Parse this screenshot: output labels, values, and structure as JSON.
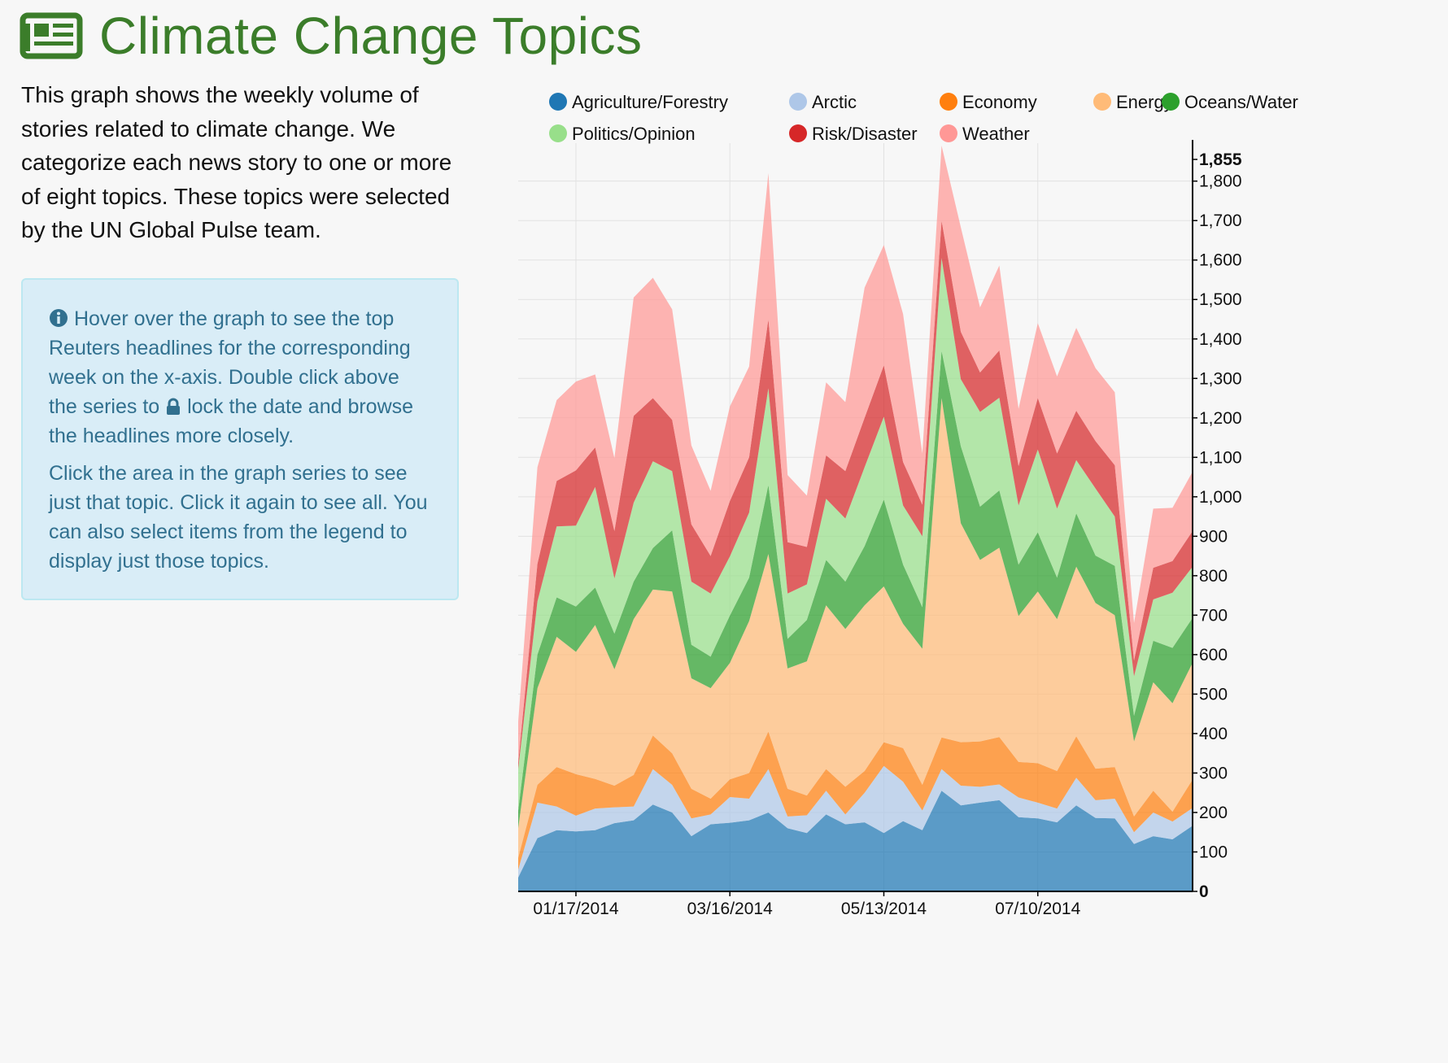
{
  "header": {
    "title": "Climate Change Topics",
    "icon": "newspaper-icon"
  },
  "intro": {
    "text": "This graph shows the weekly volume of stories related to climate change. We categorize each news story to one or more of eight topics. These topics were selected by the UN Global Pulse team."
  },
  "info": {
    "icon": "info-circle-icon",
    "p1_a": "Hover over the graph to see the top Reuters headlines for the corresponding week on the x-axis. Double click above the series to ",
    "lock_icon": "lock-icon",
    "p1_b": "lock the date and browse the headlines more closely.",
    "p2": "Click the area in the graph series to see just that topic. Click it again to see all. You can also select items from the legend to display just those topics."
  },
  "chart_data": {
    "type": "area",
    "stacked": true,
    "x": [
      "12/26/2013",
      "01/02/2014",
      "01/09/2014",
      "01/17/2014",
      "01/24/2014",
      "01/31/2014",
      "02/07/2014",
      "02/14/2014",
      "02/21/2014",
      "02/28/2014",
      "03/07/2014",
      "03/16/2014",
      "03/23/2014",
      "03/30/2014",
      "04/06/2014",
      "04/13/2014",
      "04/20/2014",
      "04/27/2014",
      "05/04/2014",
      "05/13/2014",
      "05/20/2014",
      "05/27/2014",
      "06/03/2014",
      "06/10/2014",
      "06/17/2014",
      "06/24/2014",
      "07/01/2014",
      "07/10/2014",
      "07/17/2014",
      "07/24/2014",
      "07/31/2014",
      "08/07/2014",
      "08/14/2014",
      "08/21/2014",
      "08/28/2014",
      "09/04/2014"
    ],
    "x_tick_labels": [
      "01/17/2014",
      "03/16/2014",
      "05/13/2014",
      "07/10/2014"
    ],
    "y_ticks": [
      0,
      100,
      200,
      300,
      400,
      500,
      600,
      700,
      800,
      900,
      1000,
      1100,
      1200,
      1300,
      1400,
      1500,
      1600,
      1700,
      1800,
      1855
    ],
    "ylim": [
      0,
      1855
    ],
    "grid": true,
    "legend_position": "top",
    "series": [
      {
        "name": "Agriculture/Forestry",
        "color": "#1f77b4",
        "values": [
          35,
          135,
          155,
          152,
          155,
          173,
          180,
          220,
          200,
          140,
          170,
          174,
          180,
          200,
          160,
          148,
          195,
          170,
          175,
          148,
          178,
          155,
          255,
          218,
          225,
          231,
          188,
          185,
          175,
          218,
          186,
          185,
          120,
          140,
          132,
          165
        ]
      },
      {
        "name": "Arctic",
        "color": "#aec7e8",
        "values": [
          20,
          90,
          60,
          40,
          55,
          40,
          35,
          90,
          70,
          45,
          25,
          65,
          55,
          110,
          30,
          45,
          60,
          25,
          75,
          170,
          100,
          50,
          55,
          50,
          40,
          40,
          50,
          40,
          35,
          70,
          45,
          50,
          30,
          60,
          45,
          45
        ]
      },
      {
        "name": "Economy",
        "color": "#ff7f0e",
        "values": [
          30,
          45,
          100,
          105,
          75,
          55,
          80,
          85,
          80,
          75,
          40,
          45,
          65,
          95,
          70,
          50,
          55,
          70,
          55,
          60,
          85,
          65,
          80,
          110,
          115,
          120,
          90,
          100,
          95,
          105,
          80,
          80,
          40,
          55,
          25,
          70
        ]
      },
      {
        "name": "Energy",
        "color": "#ffbb78",
        "values": [
          75,
          245,
          330,
          310,
          390,
          295,
          395,
          370,
          410,
          280,
          280,
          295,
          385,
          450,
          305,
          340,
          415,
          400,
          420,
          395,
          315,
          345,
          860,
          555,
          460,
          480,
          370,
          435,
          385,
          430,
          420,
          385,
          190,
          275,
          275,
          295
        ]
      },
      {
        "name": "Oceans/Water",
        "color": "#2ca02c",
        "values": [
          45,
          85,
          100,
          115,
          95,
          90,
          95,
          105,
          155,
          85,
          80,
          120,
          110,
          175,
          75,
          105,
          115,
          120,
          150,
          220,
          150,
          105,
          120,
          195,
          135,
          145,
          130,
          150,
          105,
          135,
          120,
          125,
          65,
          105,
          140,
          115
        ]
      },
      {
        "name": "Politics/Opinion",
        "color": "#98df8a",
        "values": [
          105,
          135,
          180,
          205,
          255,
          140,
          200,
          220,
          150,
          160,
          160,
          150,
          165,
          245,
          115,
          90,
          155,
          160,
          200,
          210,
          150,
          180,
          235,
          170,
          240,
          235,
          150,
          210,
          175,
          135,
          170,
          125,
          100,
          105,
          140,
          130
        ]
      },
      {
        "name": "Risk/Disaster",
        "color": "#d62728",
        "values": [
          15,
          95,
          115,
          140,
          100,
          120,
          220,
          160,
          130,
          145,
          95,
          140,
          140,
          175,
          130,
          95,
          110,
          120,
          125,
          130,
          110,
          80,
          95,
          120,
          100,
          120,
          100,
          130,
          140,
          125,
          120,
          130,
          40,
          80,
          80,
          90
        ]
      },
      {
        "name": "Weather",
        "color": "#ff9896",
        "values": [
          105,
          245,
          205,
          225,
          185,
          185,
          300,
          305,
          280,
          200,
          165,
          240,
          230,
          370,
          170,
          130,
          185,
          175,
          330,
          305,
          375,
          130,
          190,
          265,
          165,
          215,
          145,
          190,
          195,
          210,
          185,
          185,
          95,
          150,
          135,
          150
        ]
      }
    ]
  }
}
